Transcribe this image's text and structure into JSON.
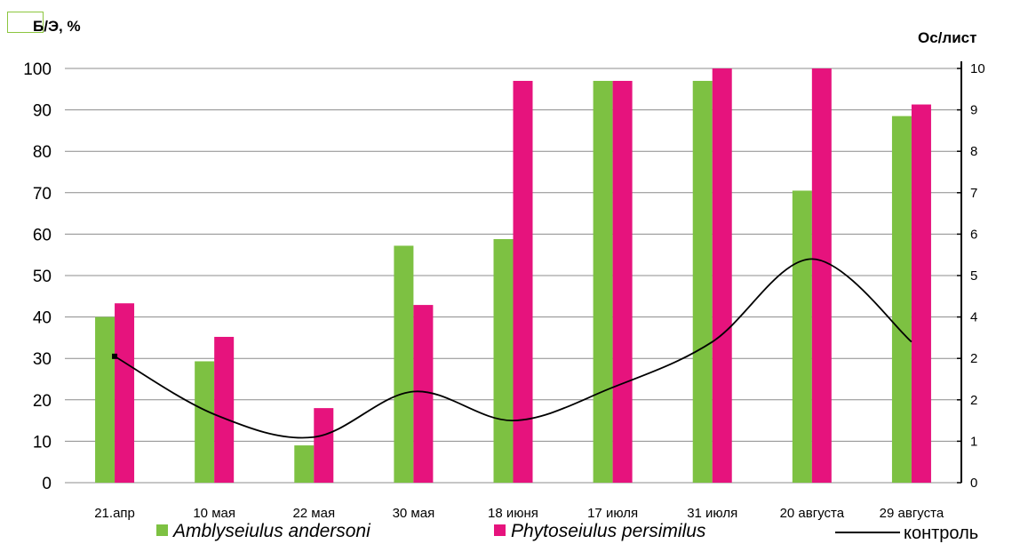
{
  "chart_data": {
    "type": "bar",
    "categories": [
      "21.апр",
      "10 мая",
      "22 мая",
      "30 мая",
      "18 июня",
      "17 июля",
      "31 июля",
      "20 августа",
      "29 августа"
    ],
    "series": [
      {
        "name": "Amblyseiulus  andersoni",
        "type": "bar",
        "axis": "left",
        "color": "#7dc142",
        "values": [
          40,
          29.3,
          9,
          57.2,
          58.8,
          97,
          97,
          70.5,
          88.5
        ]
      },
      {
        "name": "Phytoseiulus persimilus",
        "type": "bar",
        "axis": "left",
        "color": "#e6137d",
        "values": [
          43.3,
          35.2,
          18,
          42.9,
          97,
          97,
          100,
          100,
          91.3
        ]
      },
      {
        "name": "контроль",
        "type": "line",
        "axis": "right",
        "color": "#000000",
        "values": [
          3.05,
          1.65,
          1.1,
          2.2,
          1.5,
          2.3,
          3.4,
          5.4,
          3.4
        ]
      }
    ],
    "ylabel_left": "Б/Э, %",
    "ylabel_right": "Ос/лист",
    "ylim_left": [
      0,
      100
    ],
    "ylim_right": [
      0,
      10
    ],
    "yticks_left": [
      "0",
      "10",
      "20",
      "30",
      "40",
      "50",
      "60",
      "70",
      "80",
      "90",
      "100"
    ],
    "yticks_right": [
      "0",
      "1",
      "2",
      "2",
      "4",
      "5",
      "6",
      "7",
      "8",
      "9",
      "10"
    ],
    "grid": true,
    "legend_position": "bottom"
  }
}
